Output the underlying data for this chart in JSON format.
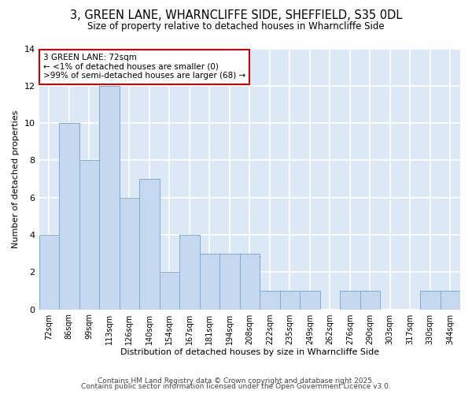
{
  "title_line1": "3, GREEN LANE, WHARNCLIFFE SIDE, SHEFFIELD, S35 0DL",
  "title_line2": "Size of property relative to detached houses in Wharncliffe Side",
  "xlabel": "Distribution of detached houses by size in Wharncliffe Side",
  "ylabel": "Number of detached properties",
  "categories": [
    "72sqm",
    "86sqm",
    "99sqm",
    "113sqm",
    "126sqm",
    "140sqm",
    "154sqm",
    "167sqm",
    "181sqm",
    "194sqm",
    "208sqm",
    "222sqm",
    "235sqm",
    "249sqm",
    "262sqm",
    "276sqm",
    "290sqm",
    "303sqm",
    "317sqm",
    "330sqm",
    "344sqm"
  ],
  "values": [
    4,
    10,
    8,
    12,
    6,
    7,
    2,
    4,
    3,
    3,
    3,
    1,
    1,
    1,
    0,
    1,
    1,
    0,
    0,
    1,
    1
  ],
  "bar_color": "#c5d8f0",
  "bar_edge_color": "#7aadd4",
  "ylim": [
    0,
    14
  ],
  "yticks": [
    0,
    2,
    4,
    6,
    8,
    10,
    12,
    14
  ],
  "annotation_text": "3 GREEN LANE: 72sqm\n← <1% of detached houses are smaller (0)\n>99% of semi-detached houses are larger (68) →",
  "annotation_box_facecolor": "#ffffff",
  "annotation_box_edgecolor": "#cc0000",
  "footer_line1": "Contains HM Land Registry data © Crown copyright and database right 2025.",
  "footer_line2": "Contains public sector information licensed under the Open Government Licence v3.0.",
  "bg_color": "#ffffff",
  "plot_bg_color": "#dce8f5",
  "grid_color": "#ffffff"
}
